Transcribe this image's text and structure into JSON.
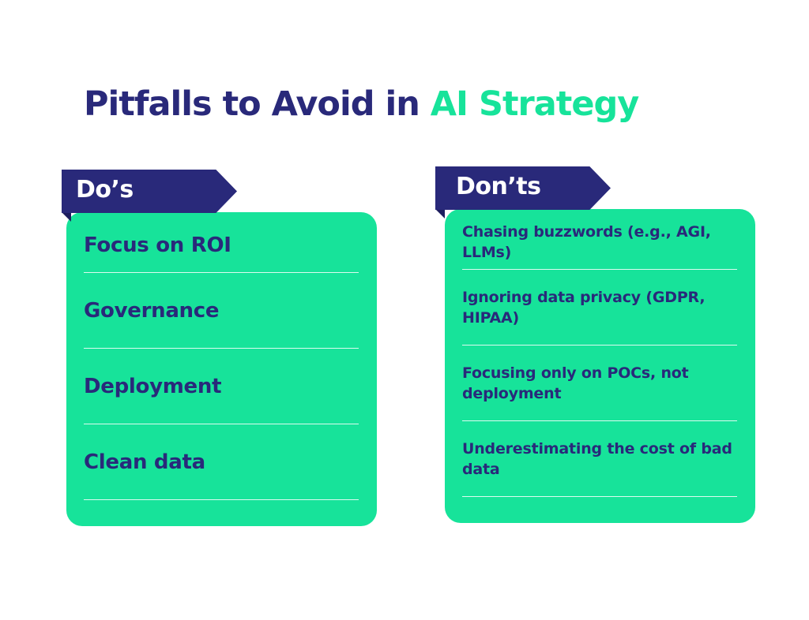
{
  "title": {
    "main": "Pitfalls to Avoid in ",
    "accent": "AI Strategy"
  },
  "dos": {
    "label": "Do’s",
    "items": [
      "Focus on ROI",
      "Governance",
      "Deployment",
      "Clean data"
    ]
  },
  "donts": {
    "label": "Don’ts",
    "items": [
      "Chasing buzzwords (e.g., AGI, LLMs)",
      "Ignoring data privacy (GDPR, HIPAA)",
      "Focusing only on POCs, not deployment",
      "Underestimating the cost of bad data"
    ]
  },
  "colors": {
    "navy": "#29297a",
    "green": "#17e39a",
    "background": "#ffffff"
  }
}
